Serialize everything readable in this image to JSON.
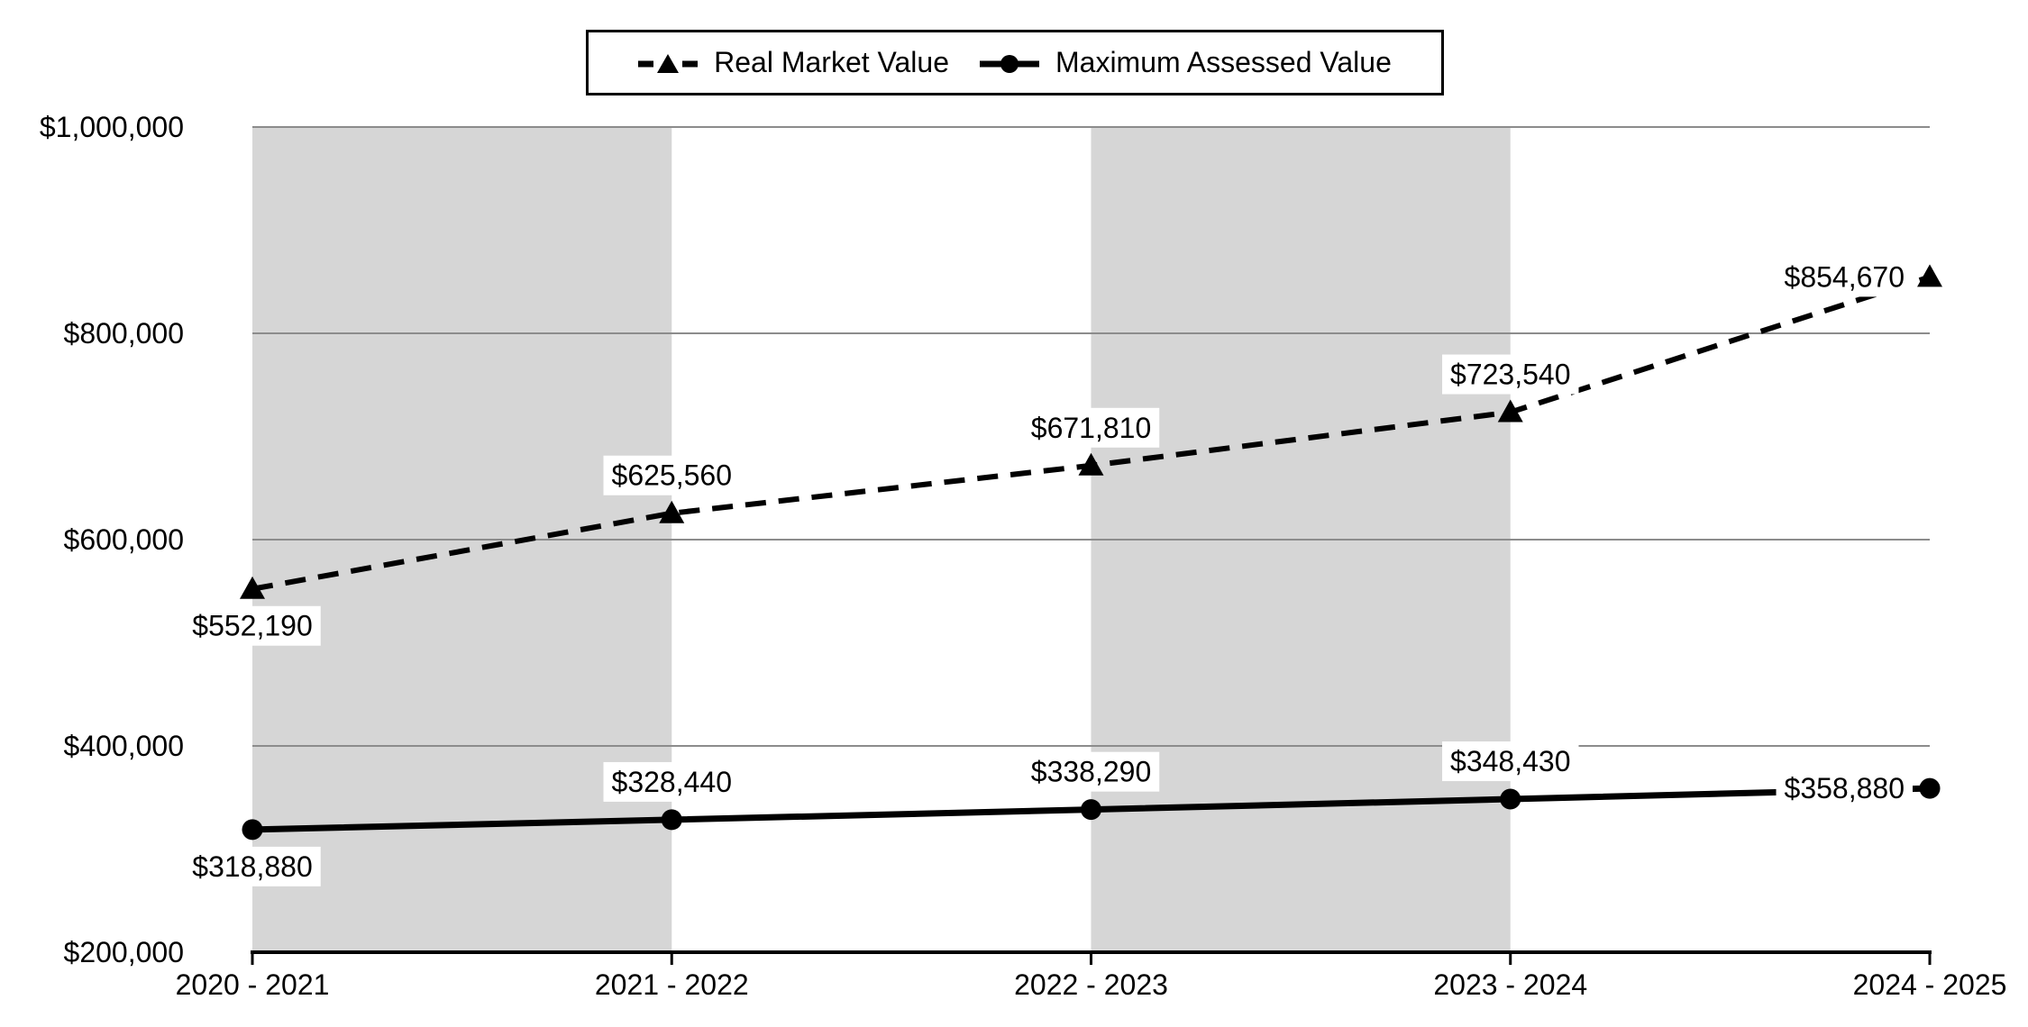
{
  "chart_data": {
    "type": "line",
    "title": "",
    "categories": [
      "2020 - 2021",
      "2021 - 2022",
      "2022 - 2023",
      "2023 - 2024",
      "2024 - 2025"
    ],
    "series": [
      {
        "name": "Real Market Value",
        "values": [
          552190,
          625560,
          671810,
          723540,
          854670
        ],
        "labels": [
          "$552,190",
          "$625,560",
          "$671,810",
          "$723,540",
          "$854,670"
        ],
        "label_placement": [
          "below",
          "above",
          "above",
          "above",
          "left"
        ],
        "line": "dashed",
        "marker": "triangle"
      },
      {
        "name": "Maximum Assessed Value",
        "values": [
          318880,
          328440,
          338290,
          348430,
          358880
        ],
        "labels": [
          "$318,880",
          "$328,440",
          "$338,290",
          "$348,430",
          "$358,880"
        ],
        "label_placement": [
          "below",
          "above",
          "above",
          "above",
          "left"
        ],
        "line": "solid",
        "marker": "circle"
      }
    ],
    "xlabel": "",
    "ylabel": "",
    "ylim": [
      200000,
      1000000
    ],
    "yticks": {
      "values": [
        1000000,
        800000,
        600000,
        400000,
        200000
      ],
      "labels": [
        "$1,000,000",
        "$800,000",
        "$600,000",
        "$400,000",
        "$200,000"
      ]
    },
    "grid": true,
    "legend_position": "top-center",
    "plot_bands": {
      "intervals": [
        [
          0,
          1
        ],
        [
          2,
          3
        ]
      ]
    }
  },
  "colors": {
    "series": "#000000",
    "band": "#d6d6d6",
    "gridline": "#8c8c8c",
    "axis": "#000000",
    "text": "#000000",
    "label_background": "#ffffff",
    "legend_border": "#000000",
    "background": "#ffffff"
  }
}
